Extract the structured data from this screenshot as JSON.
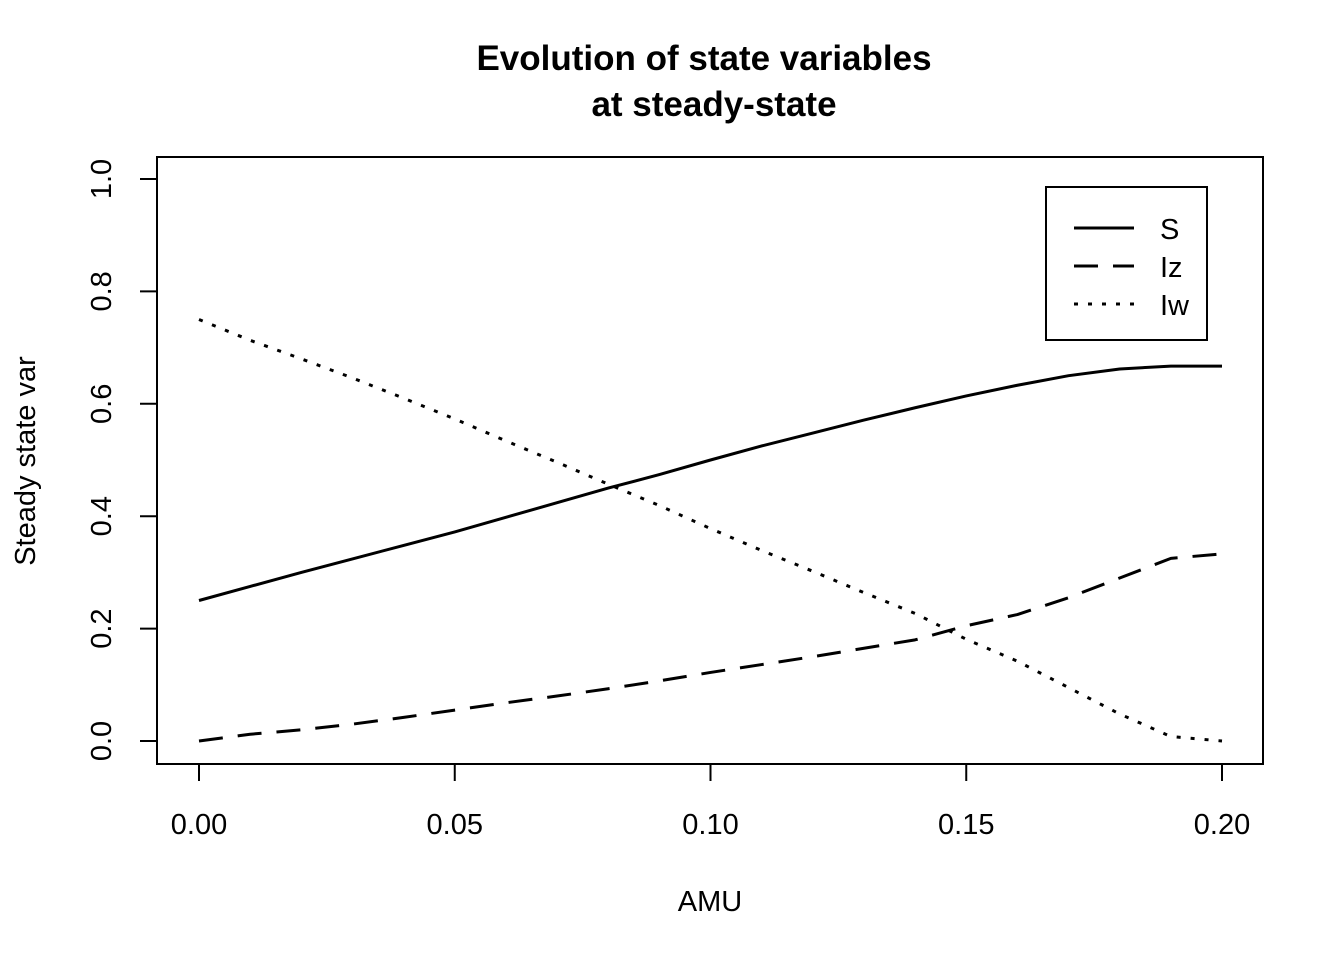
{
  "chart_data": {
    "type": "line",
    "title": [
      "Evolution of state variables",
      "at steady-state"
    ],
    "xlabel": "AMU",
    "ylabel": "Steady state var",
    "xlim": [
      0,
      0.2
    ],
    "ylim": [
      0,
      1
    ],
    "x_ticks": [
      "0.00",
      "0.05",
      "0.10",
      "0.15",
      "0.20"
    ],
    "y_ticks": [
      "0.0",
      "0.2",
      "0.4",
      "0.6",
      "0.8",
      "1.0"
    ],
    "grid": false,
    "legend_position": "top-right",
    "x": [
      0,
      0.01,
      0.02,
      0.03,
      0.04,
      0.05,
      0.06,
      0.07,
      0.08,
      0.09,
      0.1,
      0.11,
      0.12,
      0.13,
      0.14,
      0.15,
      0.16,
      0.17,
      0.18,
      0.19,
      0.2
    ],
    "series": [
      {
        "name": "S",
        "line_style": "solid",
        "values": [
          0.25,
          0.275,
          0.3,
          0.324,
          0.348,
          0.372,
          0.398,
          0.424,
          0.45,
          0.474,
          0.5,
          0.525,
          0.548,
          0.571,
          0.593,
          0.614,
          0.633,
          0.65,
          0.662,
          0.667,
          0.667
        ]
      },
      {
        "name": "Iz",
        "line_style": "dashed",
        "values": [
          0,
          0.012,
          0.02,
          0.03,
          0.042,
          0.055,
          0.068,
          0.08,
          0.093,
          0.107,
          0.122,
          0.136,
          0.15,
          0.165,
          0.18,
          0.205,
          0.225,
          0.255,
          0.29,
          0.325,
          0.333
        ]
      },
      {
        "name": "Iw",
        "line_style": "dotted",
        "values": [
          0.75,
          0.713,
          0.68,
          0.646,
          0.61,
          0.573,
          0.534,
          0.496,
          0.457,
          0.419,
          0.378,
          0.339,
          0.302,
          0.264,
          0.227,
          0.181,
          0.142,
          0.095,
          0.048,
          0.008,
          0
        ]
      }
    ]
  }
}
